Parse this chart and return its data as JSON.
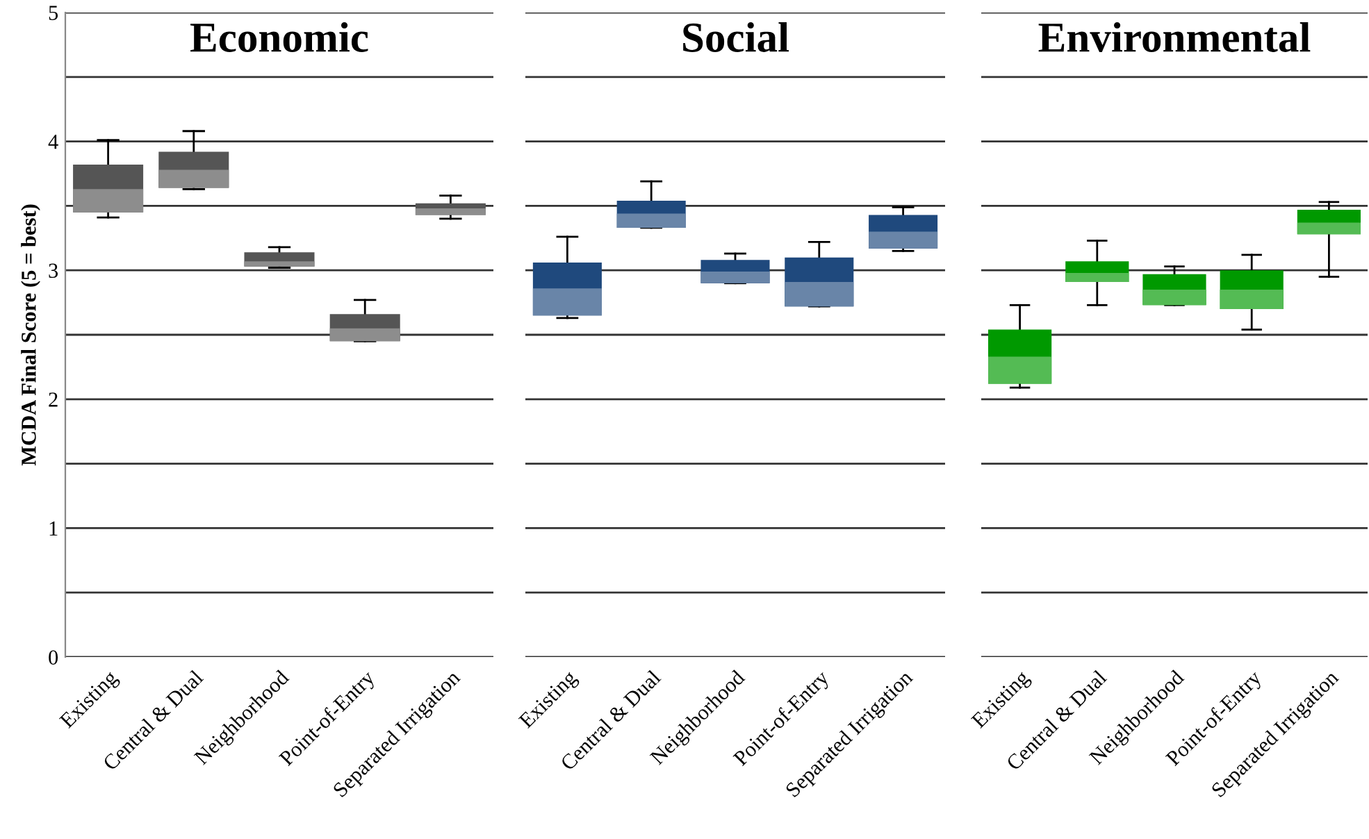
{
  "chart_data": [
    {
      "type": "box",
      "title": "Economic",
      "ylabel": "MCDA Final Score (5 = best)",
      "categories": [
        "Existing",
        "Central & Dual",
        "Neighborhood",
        "Point-of-Entry",
        "Separated Irrigation"
      ],
      "colors": [
        "#555555",
        "#555555",
        "#555555",
        "#555555",
        "#555555"
      ],
      "boxes": [
        {
          "low": 3.41,
          "q1": 3.45,
          "median": 3.63,
          "q3": 3.82,
          "high": 4.01
        },
        {
          "low": 3.63,
          "q1": 3.64,
          "median": 3.78,
          "q3": 3.92,
          "high": 4.08
        },
        {
          "low": 3.02,
          "q1": 3.03,
          "median": 3.07,
          "q3": 3.14,
          "high": 3.18
        },
        {
          "low": 2.45,
          "q1": 2.45,
          "median": 2.55,
          "q3": 2.66,
          "high": 2.77
        },
        {
          "low": 3.4,
          "q1": 3.43,
          "median": 3.48,
          "q3": 3.52,
          "high": 3.58
        }
      ],
      "ylim": [
        0,
        5
      ],
      "yticks": [
        0,
        {
          "value": 0.5,
          "label": null
        },
        1,
        {
          "value": 1.5,
          "label": null
        },
        2,
        {
          "value": 2.5,
          "label": null
        },
        3,
        {
          "value": 3.5,
          "label": null
        },
        4,
        {
          "value": 4.5,
          "label": null
        },
        5
      ],
      "grid": "y"
    },
    {
      "type": "box",
      "title": "Social",
      "categories": [
        "Existing",
        "Central & Dual",
        "Neighborhood",
        "Point-of-Entry",
        "Separated Irrigation"
      ],
      "colors": [
        "#1f497d",
        "#1f497d",
        "#1f497d",
        "#1f497d",
        "#1f497d"
      ],
      "boxes": [
        {
          "low": 2.63,
          "q1": 2.65,
          "median": 2.86,
          "q3": 3.06,
          "high": 3.26
        },
        {
          "low": 3.33,
          "q1": 3.33,
          "median": 3.44,
          "q3": 3.54,
          "high": 3.69
        },
        {
          "low": 2.9,
          "q1": 2.9,
          "median": 2.99,
          "q3": 3.08,
          "high": 3.13
        },
        {
          "low": 2.72,
          "q1": 2.72,
          "median": 2.91,
          "q3": 3.1,
          "high": 3.22
        },
        {
          "low": 3.15,
          "q1": 3.17,
          "median": 3.3,
          "q3": 3.43,
          "high": 3.49
        }
      ],
      "ylim": [
        0,
        5
      ],
      "yticks": [
        0,
        {
          "value": 0.5,
          "label": null
        },
        1,
        {
          "value": 1.5,
          "label": null
        },
        2,
        {
          "value": 2.5,
          "label": null
        },
        3,
        {
          "value": 3.5,
          "label": null
        },
        4,
        {
          "value": 4.5,
          "label": null
        },
        5
      ],
      "grid": "y",
      "tick_labels": "x"
    },
    {
      "type": "box",
      "title": "Environmental",
      "categories": [
        "Existing",
        "Central & Dual",
        "Neighborhood",
        "Point-of-Entry",
        "Separated Irrigation"
      ],
      "colors": [
        "#009900",
        "#009900",
        "#009900",
        "#009900",
        "#009900"
      ],
      "boxes": [
        {
          "low": 2.09,
          "q1": 2.12,
          "median": 2.33,
          "q3": 2.54,
          "high": 2.73
        },
        {
          "low": 2.73,
          "q1": 2.91,
          "median": 2.98,
          "q3": 3.07,
          "high": 3.23
        },
        {
          "low": 2.73,
          "q1": 2.73,
          "median": 2.85,
          "q3": 2.97,
          "high": 3.03
        },
        {
          "low": 2.54,
          "q1": 2.7,
          "median": 2.85,
          "q3": 3.0,
          "high": 3.12
        },
        {
          "low": 2.95,
          "q1": 3.28,
          "median": 3.37,
          "q3": 3.47,
          "high": 3.53
        }
      ],
      "ylim": [
        0,
        5
      ],
      "yticks": [
        0,
        {
          "value": 0.5,
          "label": null
        },
        1,
        {
          "value": 1.5,
          "label": null
        },
        2,
        {
          "value": 2.5,
          "label": null
        },
        3,
        {
          "value": 3.5,
          "label": null
        },
        4,
        {
          "value": 4.5,
          "label": null
        },
        5
      ],
      "grid": "y",
      "tick_labels": "x"
    }
  ]
}
